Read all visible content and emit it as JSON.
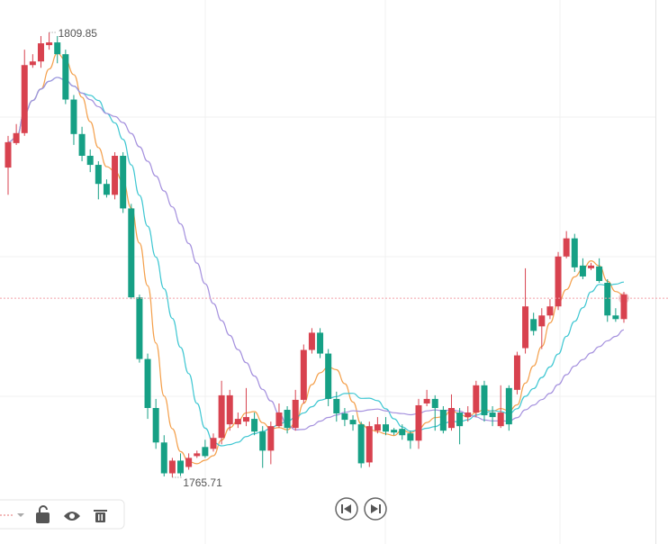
{
  "chart_data": {
    "type": "candlestick",
    "annotations": [
      "1809.85",
      "1765.71"
    ],
    "up_color": "#d8424f",
    "down_color": "#16a085",
    "ma": [
      {
        "period": 5,
        "color": "#f4a04c"
      },
      {
        "period": 10,
        "color": "#3fc7d2"
      },
      {
        "period": 20,
        "color": "#a591de"
      }
    ],
    "open": [
      1796.44,
      1798.87,
      1799.86,
      1806.61,
      1806.97,
      1808.59,
      1808.86,
      1807.69,
      1803.19,
      1799.77,
      1797.61,
      1796.71,
      1794.82,
      1793.74,
      1797.61,
      1792.39,
      1783.57,
      1777.45,
      1772.59,
      1769.17,
      1766.11,
      1767.37,
      1766.74,
      1767.82,
      1768.72,
      1768.54,
      1769.62,
      1770.97,
      1770.97,
      1771.24,
      1771.51,
      1770.25,
      1768.36,
      1770.79,
      1772.41,
      1770.61,
      1773.4,
      1778.35,
      1780.06,
      1777.99,
      1773.49,
      1772.05,
      1771.42,
      1770.97,
      1767.19,
      1770.34,
      1770.97,
      1770.43,
      1770.52,
      1770.07,
      1769.35,
      1773.04,
      1773.49,
      1772.41,
      1770.61,
      1772.14,
      1771.69,
      1772.14,
      1774.84,
      1772.14,
      1770.79,
      1774.57,
      1774.39,
      1778.53,
      1781.41,
      1780.69,
      1781.77,
      1782.67,
      1787.62,
      1789.42,
      1786.72,
      1786.45,
      1786.63,
      1785.01,
      1781.77,
      1781.41
    ],
    "high": [
      1799.59,
      1800.76,
      1808.14,
      1807.69,
      1809.49,
      1809.85,
      1809.49,
      1808.14,
      1803.64,
      1800.49,
      1798.24,
      1797.07,
      1795.27,
      1797.97,
      1797.97,
      1792.84,
      1783.84,
      1777.99,
      1773.49,
      1769.89,
      1767.64,
      1768.09,
      1768.09,
      1768.36,
      1769.44,
      1770.07,
      1775.29,
      1774.39,
      1772.14,
      1774.57,
      1772.14,
      1770.79,
      1771.24,
      1773.04,
      1772.77,
      1774.39,
      1778.89,
      1780.51,
      1780.51,
      1778.44,
      1774.21,
      1772.59,
      1771.87,
      1771.24,
      1771.24,
      1771.69,
      1771.69,
      1770.61,
      1770.97,
      1770.34,
      1773.49,
      1774.39,
      1773.85,
      1772.77,
      1773.94,
      1772.59,
      1772.77,
      1775.29,
      1775.29,
      1772.77,
      1774.84,
      1774.84,
      1778.17,
      1786.45,
      1782.04,
      1782.49,
      1783.39,
      1788.07,
      1790.14,
      1789.87,
      1787.44,
      1786.99,
      1787.44,
      1785.37,
      1782.49,
      1784.11
    ],
    "low": [
      1793.74,
      1798.69,
      1799.59,
      1806.34,
      1806.34,
      1808.14,
      1806.79,
      1802.74,
      1798.69,
      1797.07,
      1795.99,
      1793.29,
      1793.47,
      1793.29,
      1791.94,
      1783.39,
      1777.09,
      1771.51,
      1768.54,
      1765.8,
      1765.71,
      1765.84,
      1766.47,
      1767.64,
      1767.64,
      1768.27,
      1768.99,
      1770.34,
      1770.61,
      1770.79,
      1769.89,
      1766.65,
      1767.01,
      1770.61,
      1770.07,
      1770.34,
      1773.04,
      1777.99,
      1777.54,
      1772.77,
      1771.24,
      1770.79,
      1770.34,
      1766.65,
      1766.74,
      1770.07,
      1769.89,
      1769.89,
      1769.44,
      1768.54,
      1768.54,
      1772.77,
      1770.34,
      1770.07,
      1770.34,
      1768.99,
      1771.24,
      1771.69,
      1771.24,
      1770.79,
      1770.61,
      1770.34,
      1773.94,
      1777.99,
      1779.79,
      1778.44,
      1781.41,
      1782.31,
      1787.44,
      1786.09,
      1785.37,
      1786.27,
      1785.01,
      1781.14,
      1781.14,
      1781.05
    ],
    "close": [
      1798.96,
      1799.86,
      1806.61,
      1806.97,
      1808.77,
      1808.86,
      1807.69,
      1803.19,
      1799.77,
      1797.61,
      1796.71,
      1794.82,
      1793.74,
      1797.61,
      1792.39,
      1783.57,
      1777.45,
      1772.59,
      1769.17,
      1766.11,
      1767.37,
      1766.11,
      1767.64,
      1768.09,
      1767.82,
      1769.62,
      1773.85,
      1773.85,
      1771.51,
      1771.69,
      1770.25,
      1768.36,
      1770.79,
      1772.14,
      1770.61,
      1773.4,
      1778.35,
      1780.06,
      1777.99,
      1773.49,
      1772.05,
      1771.42,
      1770.97,
      1767.1,
      1770.79,
      1770.97,
      1770.25,
      1770.16,
      1769.89,
      1769.35,
      1772.86,
      1773.49,
      1772.59,
      1770.34,
      1772.59,
      1770.79,
      1772.14,
      1774.84,
      1771.87,
      1771.69,
      1772.14,
      1770.97,
      1777.81,
      1782.67,
      1780.24,
      1781.77,
      1782.67,
      1787.62,
      1789.42,
      1786.54,
      1785.64,
      1786.72,
      1785.19,
      1781.77,
      1781.41,
      1783.84
    ]
  }
}
